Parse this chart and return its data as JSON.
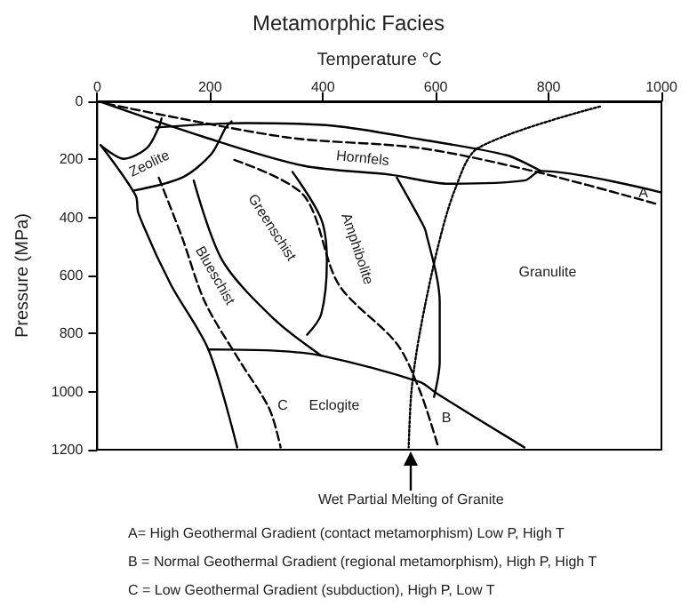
{
  "chart_data": {
    "type": "line",
    "title": "Metamorphic Facies",
    "xlabel": "Temperature °C",
    "ylabel": "Pressure (MPa)",
    "xlim": [
      0,
      1000
    ],
    "xticks": [
      0,
      200,
      400,
      600,
      800,
      1000
    ],
    "ylim": [
      1200,
      0
    ],
    "yticks": [
      0,
      200,
      400,
      600,
      800,
      1000,
      1200
    ],
    "grid": false,
    "marker": "none",
    "series": [
      {
        "color": "#000000",
        "line_style": "solid",
        "x": [
          104,
          263,
          418,
          572,
          726,
          786
        ],
        "values": [
          90,
          75,
          84,
          131,
          186,
          240
        ]
      },
      {
        "color": "#000000",
        "line_style": "solid",
        "x": [
          6,
          191,
          366,
          520,
          623,
          757,
          786,
          1000
        ],
        "values": [
          2,
          124,
          222,
          253,
          284,
          273,
          240,
          314
        ]
      },
      {
        "color": "#000000",
        "line_style": "dashed",
        "x": [
          16,
          335,
          572,
          778,
          994
        ],
        "values": [
          8,
          124,
          161,
          243,
          355
        ]
      },
      {
        "color": "#000000",
        "line_style": "solid",
        "x": [
          6,
          47,
          88,
          109,
          114
        ],
        "values": [
          151,
          198,
          161,
          90,
          59
        ]
      },
      {
        "color": "#000000",
        "line_style": "solid",
        "x": [
          63,
          150,
          202,
          228,
          238
        ],
        "values": [
          308,
          263,
          182,
          90,
          69
        ]
      },
      {
        "color": "#000000",
        "line_style": "solid",
        "x": [
          6,
          68,
          73,
          130,
          197,
          248
        ],
        "values": [
          151,
          324,
          386,
          630,
          855,
          1192
        ]
      },
      {
        "color": "#000000",
        "line_style": "dashed",
        "x": [
          109,
          150,
          191,
          253,
          305,
          325
        ],
        "values": [
          263,
          467,
          692,
          896,
          1059,
          1192
        ]
      },
      {
        "color": "#000000",
        "line_style": "solid",
        "x": [
          171,
          222,
          315,
          397
        ],
        "values": [
          273,
          549,
          753,
          876
        ]
      },
      {
        "color": "#000000",
        "line_style": "solid",
        "x": [
          346,
          397,
          407,
          397,
          372
        ],
        "values": [
          243,
          406,
          549,
          733,
          804
        ]
      },
      {
        "color": "#000000",
        "line_style": "solid",
        "x": [
          531,
          572,
          582,
          607,
          607,
          597
        ],
        "values": [
          263,
          406,
          447,
          692,
          896,
          1018
        ]
      },
      {
        "color": "#000000",
        "line_style": "solid",
        "x": [
          197,
          315,
          397,
          572,
          603,
          757
        ],
        "values": [
          855,
          859,
          876,
          967,
          1008,
          1192
        ]
      },
      {
        "color": "#000000",
        "line_style": "dashed",
        "x": [
          243,
          366,
          428,
          531,
          572,
          603
        ],
        "values": [
          202,
          324,
          631,
          835,
          998,
          1182
        ]
      },
      {
        "color": "#000000",
        "line_style": "dotted",
        "x": [
          891,
          675,
          634,
          603,
          572,
          557,
          552
        ],
        "values": [
          18,
          161,
          304,
          508,
          794,
          996,
          1192
        ]
      }
    ],
    "annotations": [
      "Hornfels",
      "Zeolite",
      "Blueschist",
      "Greenschist",
      "Amphibolite",
      "Granulite",
      "Eclogite",
      "C",
      "B",
      {
        "text": "A",
        "x": 968,
        "y": 314
      },
      {
        "text": "Wet Partial Melting of Granite",
        "x": 556,
        "y": 1200
      },
      "A= High Geothermal Gradient (contact metamorphism) Low P, High T",
      "B = Normal Geothermal Gradient (regional metamorphism), High P, High T",
      "C = Low Geothermal Gradient (subduction), High P, Low T"
    ]
  }
}
